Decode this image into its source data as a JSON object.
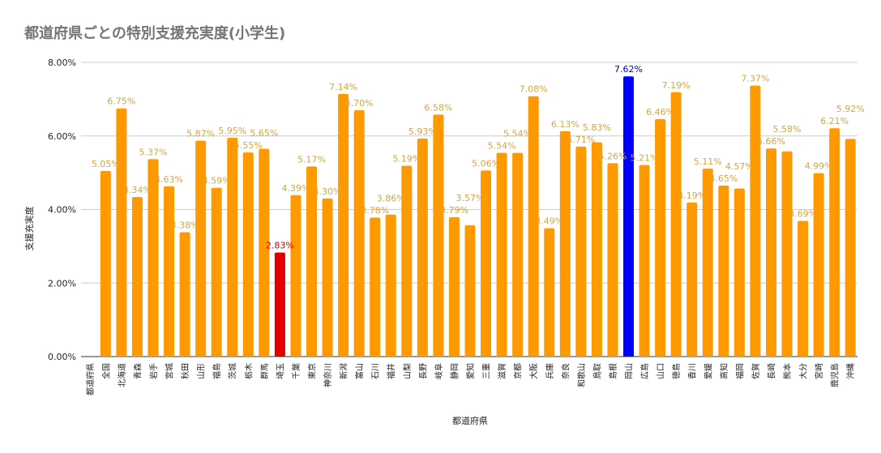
{
  "chart_data": {
    "type": "bar",
    "title": "都道府県ごとの特別支援充実度(小学生)",
    "xlabel": "都道府県",
    "ylabel": "支援充実度",
    "ylim": [
      0,
      8
    ],
    "yticks": [
      "0.00%",
      "2.00%",
      "4.00%",
      "6.00%",
      "8.00%"
    ],
    "grid": true,
    "categories": [
      "都道府県",
      "全国",
      "北海道",
      "青森",
      "岩手",
      "宮城",
      "秋田",
      "山形",
      "福島",
      "茨城",
      "栃木",
      "群馬",
      "埼玉",
      "千葉",
      "東京",
      "神奈川",
      "新潟",
      "富山",
      "石川",
      "福井",
      "山梨",
      "長野",
      "岐阜",
      "静岡",
      "愛知",
      "三重",
      "滋賀",
      "京都",
      "大阪",
      "兵庫",
      "奈良",
      "和歌山",
      "鳥取",
      "島根",
      "岡山",
      "広島",
      "山口",
      "徳島",
      "香川",
      "愛媛",
      "高知",
      "福岡",
      "佐賀",
      "長崎",
      "熊本",
      "大分",
      "宮崎",
      "鹿児島",
      "沖縄"
    ],
    "values": [
      null,
      5.05,
      6.75,
      4.34,
      5.37,
      4.63,
      3.38,
      5.87,
      4.59,
      5.95,
      5.55,
      5.65,
      2.83,
      4.39,
      5.17,
      4.3,
      7.14,
      6.7,
      3.78,
      3.86,
      5.19,
      5.93,
      6.58,
      3.79,
      3.57,
      5.06,
      5.54,
      5.54,
      7.08,
      3.49,
      6.13,
      5.71,
      5.83,
      5.26,
      7.62,
      5.21,
      6.46,
      7.19,
      4.19,
      5.11,
      4.65,
      4.57,
      7.37,
      5.66,
      5.58,
      3.69,
      4.99,
      6.21,
      5.92
    ],
    "colors": {
      "default": "#ff9900",
      "lowest": "#e00000",
      "highest": "#0000ff",
      "default_label": "#d9a440",
      "lowest_label": "#cc0000",
      "highest_label": "#0000cc"
    },
    "highlight": {
      "lowest": "埼玉",
      "highest": "岡山"
    }
  }
}
